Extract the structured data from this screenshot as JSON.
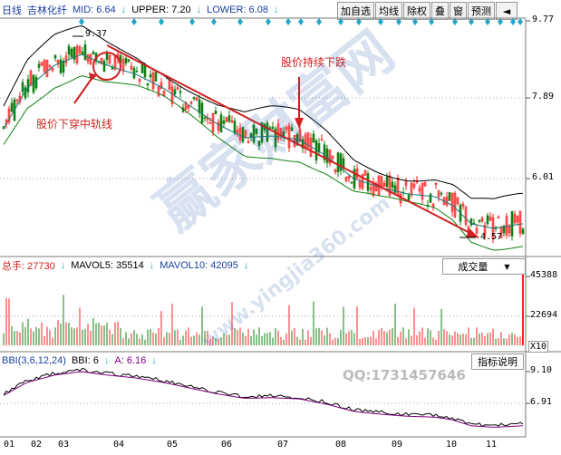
{
  "header": {
    "period": "日线",
    "stock": "吉林化纤",
    "mid": "MID: 6.64",
    "upper": "UPPER: 7.20",
    "lower": "LOWER: 6.08"
  },
  "toolbar": [
    "加自选",
    "均线",
    "除权",
    "叠",
    "窗",
    "预测"
  ],
  "price_axis": [
    "9.77",
    "7.89",
    "6.01"
  ],
  "annotations": {
    "high_label": "9.37",
    "low_label": "4.57",
    "cross_text": "股价下穿中轨线",
    "trend_text": "股价持续下跌"
  },
  "volume_panel": {
    "total": "总手: 27730",
    "mavol5": "MAVOL5: 35514",
    "mavol10": "MAVOL10: 42095",
    "dropdown": "成交量",
    "axis": [
      "45388",
      "22694"
    ],
    "unit": "X10"
  },
  "bbi_panel": {
    "title": "BBI(3,6,12,24)",
    "bbi": "BBI: 6",
    "a": "A: 6.16",
    "button": "指标说明",
    "axis": [
      "9.10",
      "6.91"
    ],
    "qq": "QQ:1731457646"
  },
  "x_axis": [
    "01",
    "02",
    "03",
    "04",
    "05",
    "06",
    "07",
    "08",
    "09",
    "10",
    "11"
  ],
  "watermark": [
    "赢家财富网",
    "www.yingjia360.com"
  ],
  "colors": {
    "up": "#ff2020",
    "down": "#108010",
    "band": "#000000",
    "mid": "#1a7a7a",
    "annot": "#d02020",
    "diamond": "#23a6c9"
  }
}
